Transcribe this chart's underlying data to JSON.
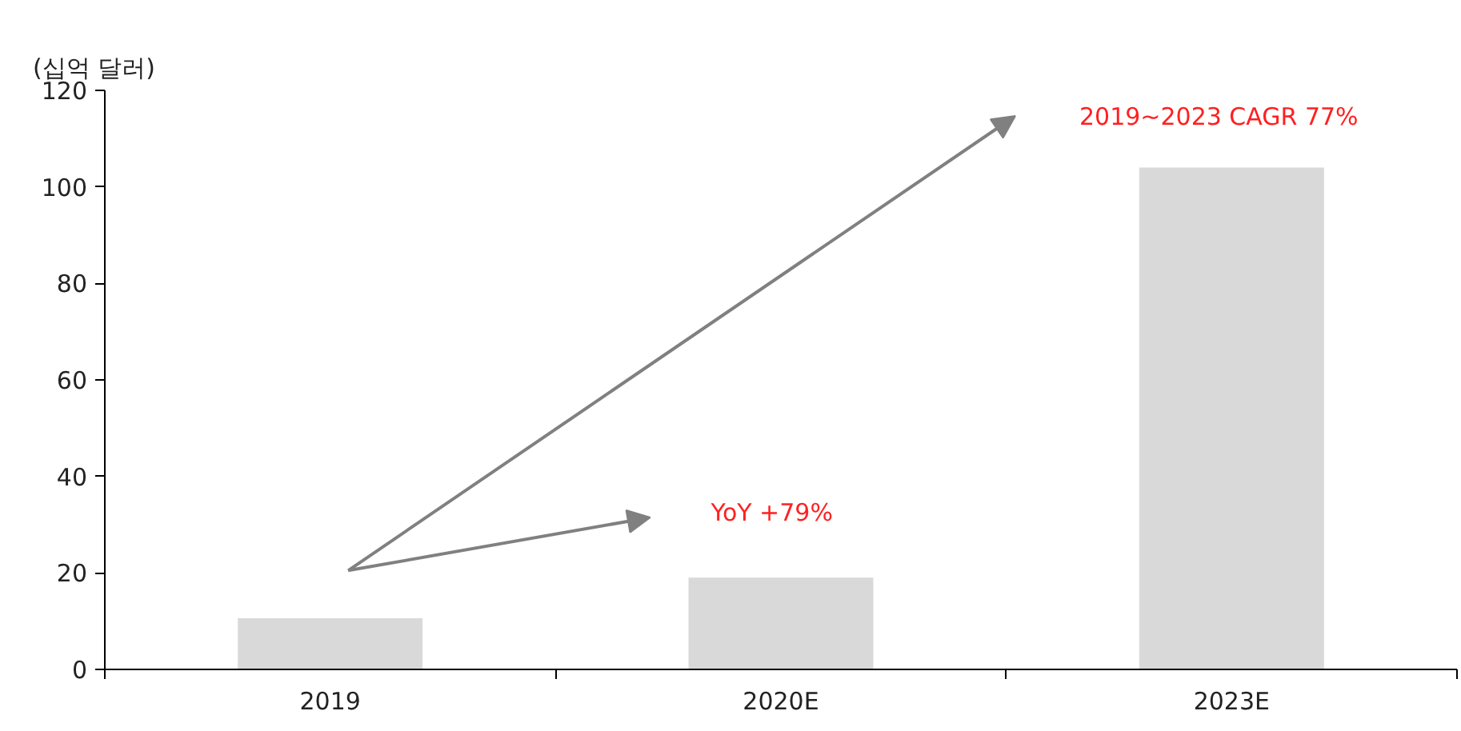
{
  "chart_data": {
    "type": "bar",
    "ylabel": "(십억 달러)",
    "categories": [
      "2019",
      "2020E",
      "2023E"
    ],
    "values": [
      10.6,
      19.0,
      104
    ],
    "color": "#d9d9d9",
    "ylim": [
      0,
      120
    ],
    "yticks": [
      0,
      20,
      40,
      60,
      80,
      100,
      120
    ],
    "grid": false,
    "annotations": [
      "YoY +79%",
      "2019~2023  CAGR 77%"
    ]
  }
}
